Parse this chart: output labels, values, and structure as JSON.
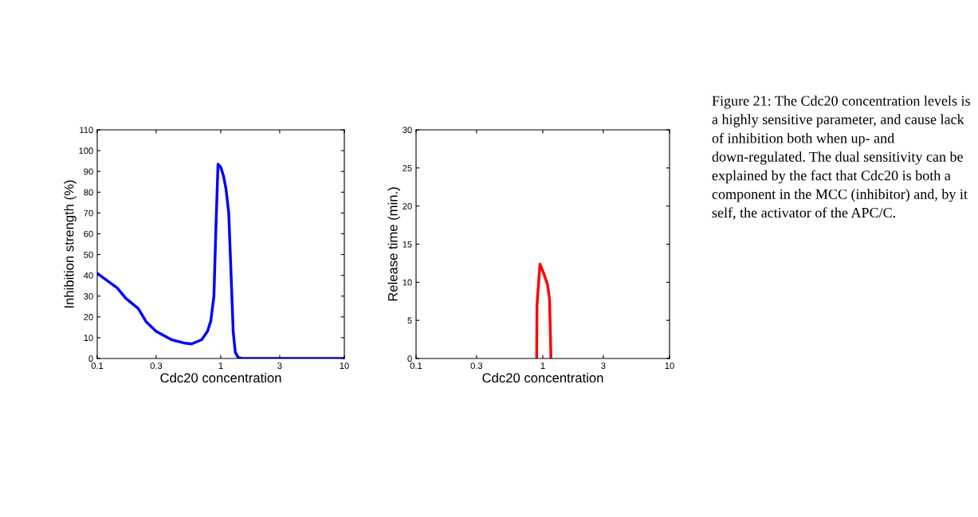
{
  "chart_data": [
    {
      "type": "line",
      "xlabel": "Cdc20 concentration",
      "ylabel": "Inhibition strength (%)",
      "log": "x",
      "xlim": [
        0.1,
        10
      ],
      "xticks": [
        0.1,
        0.3,
        1,
        3,
        10
      ],
      "ylim": [
        0,
        110
      ],
      "yticks": [
        0,
        10,
        20,
        30,
        40,
        50,
        60,
        70,
        80,
        90,
        100,
        110
      ],
      "grid": false,
      "series": [
        {
          "color": "#0000ff",
          "x": [
            0.1,
            0.12,
            0.145,
            0.17,
            0.215,
            0.25,
            0.3,
            0.4,
            0.5,
            0.58,
            0.7,
            0.78,
            0.83,
            0.88,
            0.91,
            0.95,
            1.0,
            1.05,
            1.1,
            1.16,
            1.23,
            1.26,
            1.31,
            1.38,
            1.49,
            10
          ],
          "values": [
            41,
            37.5,
            34,
            29,
            24,
            17.5,
            13,
            9,
            7.5,
            7,
            9,
            13,
            18,
            30,
            60,
            93.5,
            92,
            88,
            82,
            70,
            30,
            13,
            3,
            0.5,
            0,
            0
          ]
        }
      ]
    },
    {
      "type": "line",
      "xlabel": "Cdc20 concentration",
      "ylabel": "Release time (min.)",
      "log": "x",
      "xlim": [
        0.1,
        10
      ],
      "xticks": [
        0.1,
        0.3,
        1,
        3,
        10
      ],
      "ylim": [
        0,
        30
      ],
      "yticks": [
        0,
        5,
        10,
        15,
        20,
        25,
        30
      ],
      "grid": false,
      "series": [
        {
          "color": "#ff0000",
          "x": [
            0.895,
            0.9,
            0.95,
            1.015,
            1.09,
            1.13,
            1.16
          ],
          "values": [
            0,
            7,
            12.4,
            11.2,
            9.7,
            7.8,
            0
          ]
        }
      ],
      "annotations": [
        "Figure 21: The Cdc20 concentration levels is a highly sensitive parameter, and cause lack of inhibition both when up- and down-regulated. The dual sensitivity can be explained by the fact that Cdc20 is both a component in the MCC (inhibitor) and, by it self, the activator of the APC/C."
      ]
    }
  ]
}
